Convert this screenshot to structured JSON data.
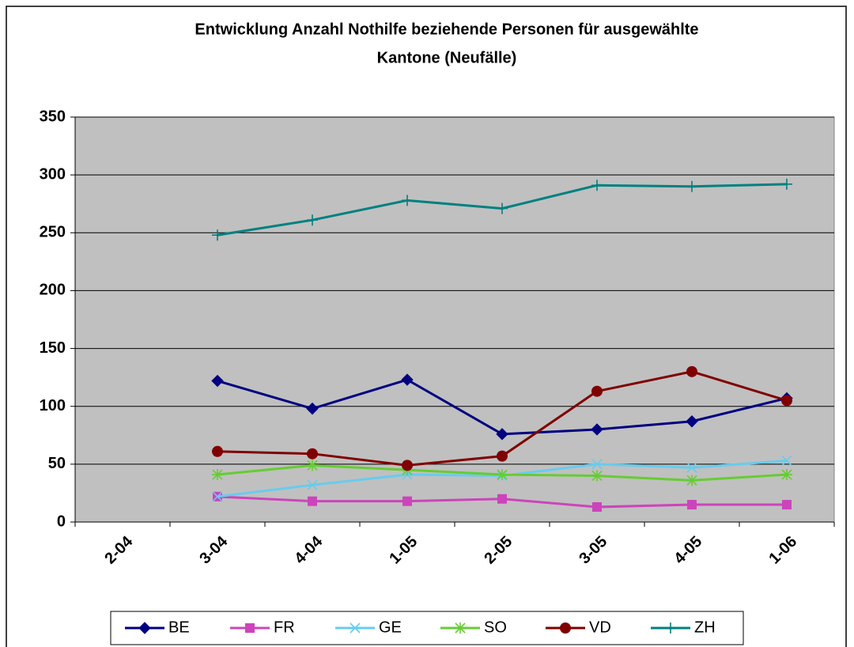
{
  "chart_data": {
    "type": "line",
    "title": [
      "Entwicklung Anzahl Nothilfe beziehende Personen für ausgewählte",
      "Kantone (Neufälle)"
    ],
    "categories": [
      "2-04",
      "3-04",
      "4-04",
      "1-05",
      "2-05",
      "3-05",
      "4-05",
      "1-06"
    ],
    "series": [
      {
        "name": "BE",
        "color": "#000080",
        "marker": "diamond",
        "values": [
          null,
          122,
          98,
          123,
          76,
          80,
          87,
          107
        ]
      },
      {
        "name": "FR",
        "color": "#cc44bb",
        "marker": "square",
        "values": [
          null,
          22,
          18,
          18,
          20,
          13,
          15,
          15
        ]
      },
      {
        "name": "GE",
        "color": "#66ccee",
        "marker": "x",
        "values": [
          null,
          22,
          32,
          41,
          40,
          50,
          47,
          53
        ]
      },
      {
        "name": "SO",
        "color": "#66cc33",
        "marker": "asterisk",
        "values": [
          null,
          41,
          49,
          45,
          41,
          40,
          36,
          41
        ]
      },
      {
        "name": "VD",
        "color": "#800000",
        "marker": "circle",
        "values": [
          null,
          61,
          59,
          49,
          57,
          113,
          130,
          105
        ]
      },
      {
        "name": "ZH",
        "color": "#008080",
        "marker": "plus",
        "values": [
          null,
          248,
          261,
          278,
          271,
          291,
          290,
          292
        ]
      }
    ],
    "ylim": [
      0,
      350
    ],
    "yticks": [
      0,
      50,
      100,
      150,
      200,
      250,
      300,
      350
    ],
    "grid": true,
    "legend": "bottom"
  }
}
